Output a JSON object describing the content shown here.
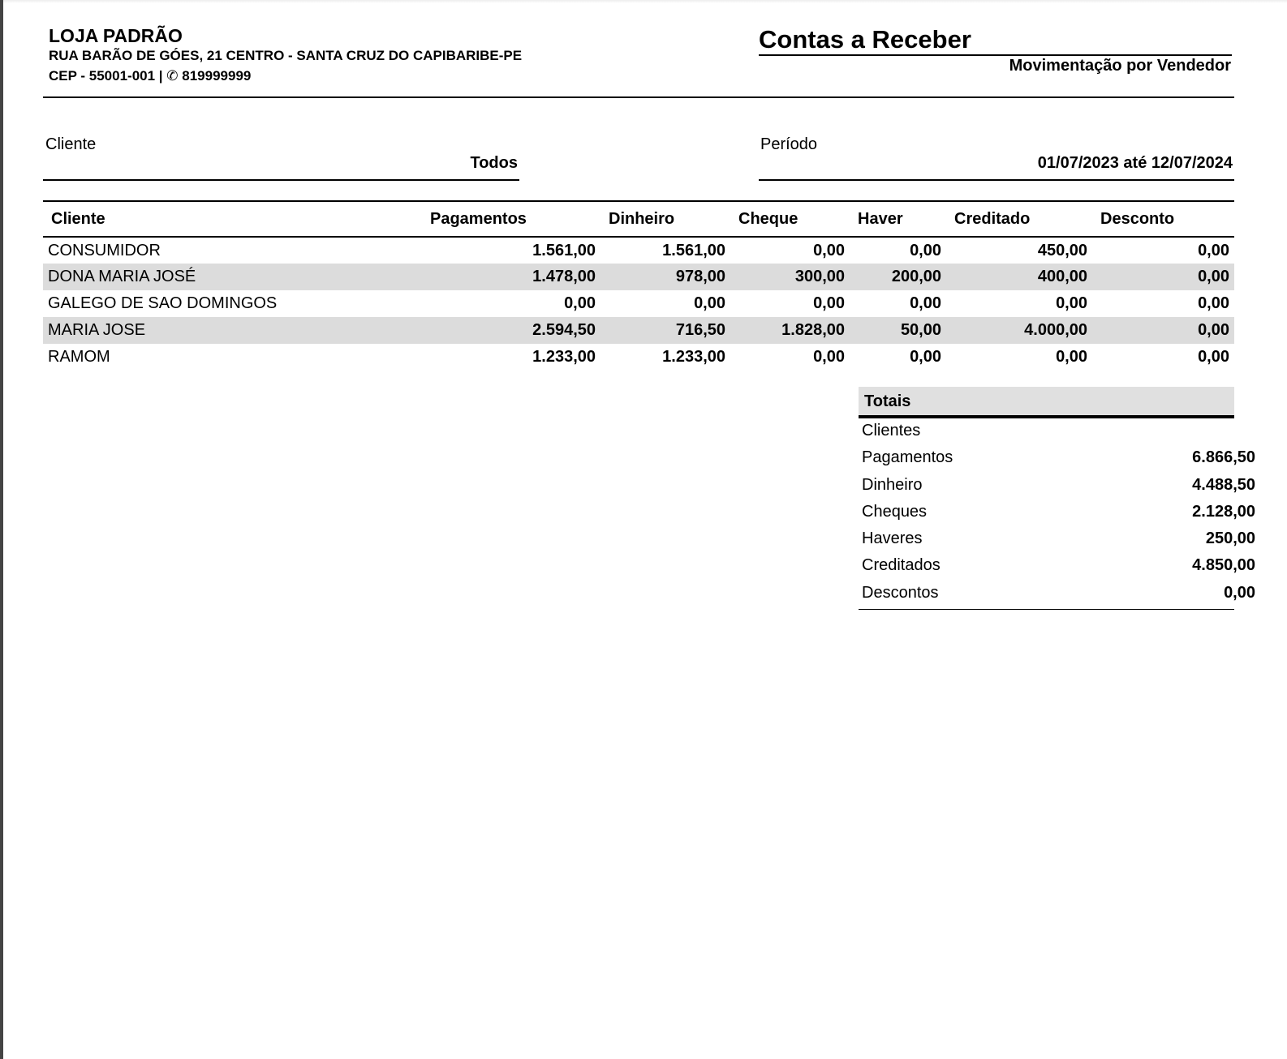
{
  "store": {
    "name": "LOJA PADRÃO",
    "address": "RUA BARÃO DE GÓES, 21 CENTRO - SANTA CRUZ DO CAPIBARIBE-PE",
    "cep": "CEP - 55001-001 |",
    "phone_icon": "phone-icon",
    "phone_glyph": "✆",
    "phone": "819999999"
  },
  "report": {
    "title": "Contas a Receber",
    "subtitle": "Movimentação por Vendedor"
  },
  "filters": {
    "client_label": "Cliente",
    "client_value": "Todos",
    "period_label": "Período",
    "period_value": "01/07/2023 até 12/07/2024"
  },
  "table": {
    "headers": [
      "Cliente",
      "Pagamentos",
      "Dinheiro",
      "Cheque",
      "Haver",
      "Creditado",
      "Desconto"
    ],
    "rows": [
      [
        "CONSUMIDOR",
        "1.561,00",
        "1.561,00",
        "0,00",
        "0,00",
        "450,00",
        "0,00"
      ],
      [
        "DONA MARIA JOSÉ",
        "1.478,00",
        "978,00",
        "300,00",
        "200,00",
        "400,00",
        "0,00"
      ],
      [
        "GALEGO DE SAO DOMINGOS",
        "0,00",
        "0,00",
        "0,00",
        "0,00",
        "0,00",
        "0,00"
      ],
      [
        "MARIA JOSE",
        "2.594,50",
        "716,50",
        "1.828,00",
        "50,00",
        "4.000,00",
        "0,00"
      ],
      [
        "RAMOM",
        "1.233,00",
        "1.233,00",
        "0,00",
        "0,00",
        "0,00",
        "0,00"
      ]
    ]
  },
  "totals": {
    "title": "Totais",
    "rows": [
      {
        "label": "Clientes",
        "value": ""
      },
      {
        "label": "Pagamentos",
        "value": "6.866,50"
      },
      {
        "label": "Dinheiro",
        "value": "4.488,50"
      },
      {
        "label": "Cheques",
        "value": "2.128,00"
      },
      {
        "label": "Haveres",
        "value": "250,00"
      },
      {
        "label": "Creditados",
        "value": "4.850,00"
      },
      {
        "label": "Descontos",
        "value": "0,00"
      }
    ]
  }
}
